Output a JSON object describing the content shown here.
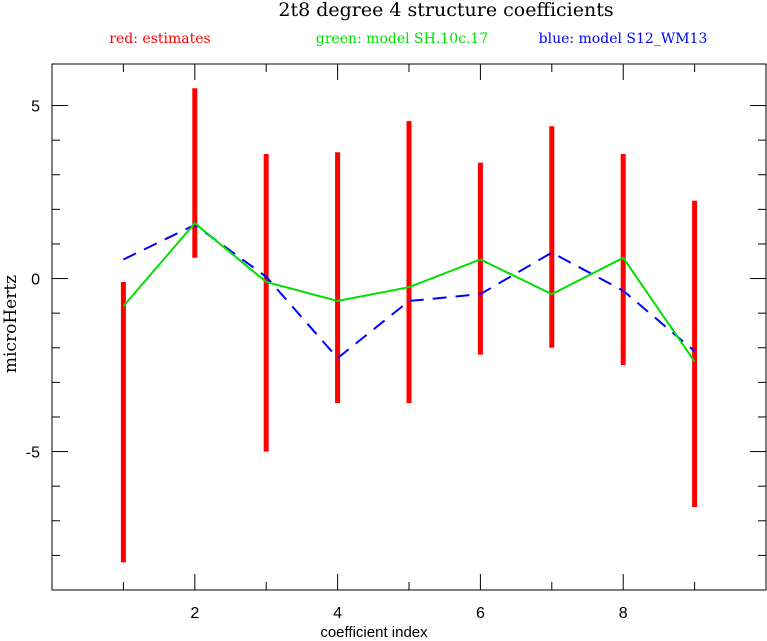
{
  "chart_data": {
    "type": "errorbar-line",
    "title": "2t8 degree 4 structure coefficients",
    "xlabel": "coefficient index",
    "ylabel": "microHertz",
    "xlim": [
      0,
      10
    ],
    "ylim": [
      -9,
      6.2
    ],
    "xticks_major": [
      2,
      4,
      6,
      8
    ],
    "xticks_minor": [
      1,
      3,
      5,
      7,
      9
    ],
    "yticks_major": [
      -5,
      0,
      5
    ],
    "yticks_minor": [
      -8,
      -7,
      -6,
      -4,
      -3,
      -2,
      -1,
      1,
      2,
      3,
      4
    ],
    "legend": [
      {
        "text": "red: estimates",
        "color": "#ff0000"
      },
      {
        "text": "green: model SH.10c.17",
        "color": "#00e000"
      },
      {
        "text": "blue: model S12_WM13",
        "color": "#0000ff"
      }
    ],
    "x": [
      1,
      2,
      3,
      4,
      5,
      6,
      7,
      8,
      9
    ],
    "series": [
      {
        "name": "estimates",
        "color": "#ff0000",
        "style": "errorbar",
        "low": [
          -8.2,
          0.6,
          -5.0,
          -3.6,
          -3.6,
          -2.2,
          -2.0,
          -2.5,
          -6.6
        ],
        "high": [
          -0.1,
          5.5,
          3.6,
          3.65,
          4.55,
          3.35,
          4.4,
          3.6,
          2.25
        ]
      },
      {
        "name": "model SH.10c.17",
        "color": "#00e000",
        "style": "solid",
        "values": [
          -0.8,
          1.6,
          -0.1,
          -0.65,
          -0.25,
          0.55,
          -0.45,
          0.6,
          -2.4
        ]
      },
      {
        "name": "model S12_WM13",
        "color": "#0000ff",
        "style": "dashed",
        "values": [
          0.55,
          1.55,
          0.05,
          -2.3,
          -0.65,
          -0.45,
          0.75,
          -0.35,
          -2.1
        ]
      }
    ]
  }
}
